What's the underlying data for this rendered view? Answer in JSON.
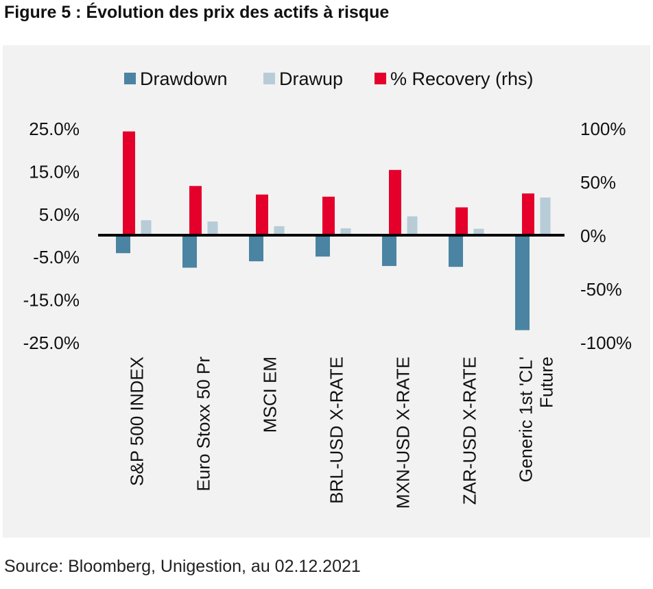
{
  "figure_title": "Figure 5 : Évolution des prix des actifs à risque",
  "source": "Source: Bloomberg, Unigestion, au 02.12.2021",
  "colors": {
    "drawdown": "#4a84a2",
    "drawup": "#b7ccd7",
    "recovery": "#e4002b",
    "panel": "#f2f2f2",
    "axis": "#000000"
  },
  "chart_data": {
    "type": "bar",
    "title": "",
    "categories": [
      [
        "S&P 500 INDEX"
      ],
      [
        "Euro Stoxx 50 Pr"
      ],
      [
        "MSCI EM"
      ],
      [
        "BRL-USD X-RATE"
      ],
      [
        "MXN-USD X-RATE"
      ],
      [
        "ZAR-USD X-RATE"
      ],
      [
        "Generic 1st 'CL'",
        "Future"
      ]
    ],
    "series": [
      {
        "name": "Drawdown",
        "axis": "left",
        "color": "#4a84a2",
        "values": [
          -4.2,
          -7.6,
          -6.1,
          -5.0,
          -7.2,
          -7.4,
          -22.2
        ]
      },
      {
        "name": "Drawup",
        "axis": "left",
        "color": "#b7ccd7",
        "values": [
          3.5,
          3.2,
          2.1,
          1.6,
          4.4,
          1.5,
          8.8
        ]
      },
      {
        "name": "% Recovery (rhs)",
        "axis": "right",
        "color": "#e4002b",
        "values": [
          97,
          46,
          38,
          36,
          61,
          26,
          39
        ]
      }
    ],
    "y_left": {
      "ylim": [
        -25,
        25
      ],
      "ticks": [
        25,
        15,
        5,
        -5,
        -15,
        -25
      ],
      "tick_labels": [
        "25.0%",
        "15.0%",
        "5.0%",
        "-5.0%",
        "-15.0%",
        "-25.0%"
      ]
    },
    "y_right": {
      "ylim": [
        -100,
        100
      ],
      "ticks": [
        100,
        50,
        0,
        -50,
        -100
      ],
      "tick_labels": [
        "100%",
        "50%",
        "0%",
        "-50%",
        "-100%"
      ]
    },
    "legend": [
      "Drawdown",
      "Drawup",
      "% Recovery (rhs)"
    ],
    "legend_position": "top-center",
    "grid": false
  }
}
